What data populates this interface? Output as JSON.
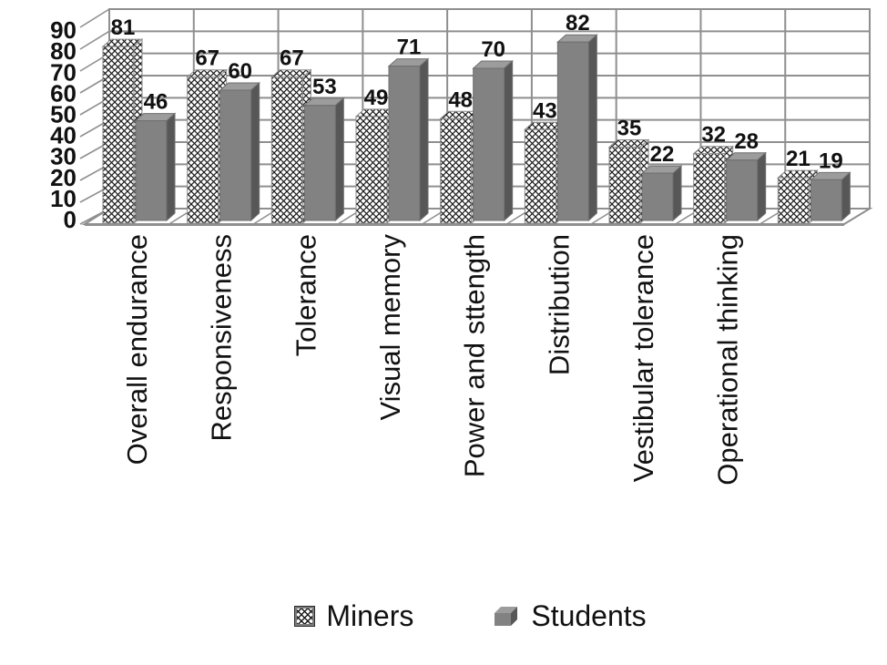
{
  "chart_data": {
    "type": "bar",
    "projection": "3d",
    "title": "",
    "xlabel": "",
    "ylabel": "",
    "categories": [
      "Overall endurance",
      "Responsiveness",
      "Tolerance",
      "Visual memory",
      "Power and sttength",
      "Distribution",
      "Vestibular tolerance",
      "Operational thinking",
      ""
    ],
    "series": [
      {
        "name": "Miners",
        "style": "hatched-white",
        "values": [
          81,
          67,
          67,
          49,
          48,
          43,
          35,
          32,
          21
        ]
      },
      {
        "name": "Students",
        "style": "solid-gray",
        "values": [
          46,
          60,
          53,
          71,
          70,
          82,
          22,
          28,
          19
        ]
      }
    ],
    "data_labels": true,
    "ylim": [
      0,
      90
    ],
    "ytick_step": 10,
    "yticks": [
      0,
      10,
      20,
      30,
      40,
      50,
      60,
      70,
      80,
      90
    ],
    "grid": true,
    "legend_position": "bottom",
    "colors": {
      "bar_front": "#828282",
      "bar_side": "#575757",
      "bar_top": "#9c9c9c",
      "bar_edge": "#6e6e6e",
      "hatch_line": "#1a1a1a",
      "hatch_bg": "#ffffff",
      "hatch_edge": "#8a8a8a",
      "grid_line": "#8f8f8f",
      "text": "#111111"
    }
  }
}
